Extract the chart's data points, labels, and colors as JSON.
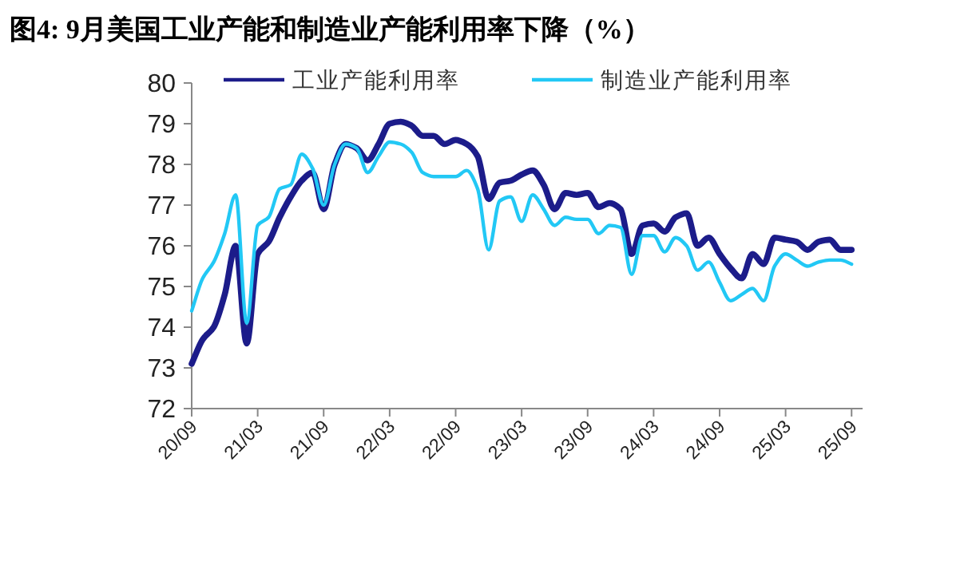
{
  "chart_data": {
    "type": "line",
    "title": "图4:  9月美国工业产能和制造业产能利用率下降（%）",
    "categories": [
      "20/09",
      null,
      null,
      null,
      null,
      null,
      "21/03",
      null,
      null,
      null,
      null,
      null,
      "21/09",
      null,
      null,
      null,
      null,
      null,
      "22/03",
      null,
      null,
      null,
      null,
      null,
      "22/09",
      null,
      null,
      null,
      null,
      null,
      "23/03",
      null,
      null,
      null,
      null,
      null,
      "23/09",
      null,
      null,
      null,
      null,
      null,
      "24/03",
      null,
      null,
      null,
      null,
      null,
      "24/09",
      null,
      null,
      null,
      null,
      null,
      "25/03",
      null,
      null,
      null,
      null,
      null,
      "25/09"
    ],
    "series": [
      {
        "name": "工业产能利用率",
        "color": "#1c1c8a",
        "values": [
          73.1,
          73.7,
          74.0,
          74.8,
          76.0,
          73.6,
          75.8,
          76.1,
          76.7,
          77.2,
          77.6,
          77.8,
          76.9,
          78.0,
          78.5,
          78.4,
          78.1,
          78.5,
          79.0,
          79.05,
          78.95,
          78.7,
          78.7,
          78.5,
          78.6,
          78.5,
          78.2,
          77.15,
          77.55,
          77.6,
          77.75,
          77.85,
          77.5,
          76.9,
          77.3,
          77.25,
          77.3,
          76.95,
          77.05,
          76.9,
          75.8,
          76.5,
          76.55,
          76.35,
          76.7,
          76.8,
          76.0,
          76.2,
          75.8,
          75.45,
          75.2,
          75.8,
          75.55,
          76.2,
          76.15,
          76.1,
          75.9,
          76.1,
          76.15,
          75.9,
          75.9
        ]
      },
      {
        "name": "制造业产能利用率",
        "color": "#22c8f5",
        "values": [
          74.4,
          75.2,
          75.6,
          76.3,
          77.25,
          74.1,
          76.5,
          76.7,
          77.4,
          77.5,
          78.25,
          77.9,
          77.0,
          78.0,
          78.5,
          78.4,
          77.8,
          78.2,
          78.55,
          78.5,
          78.3,
          77.8,
          77.7,
          77.7,
          77.7,
          77.85,
          77.4,
          75.9,
          77.1,
          77.2,
          76.6,
          77.25,
          76.9,
          76.5,
          76.7,
          76.65,
          76.65,
          76.3,
          76.5,
          76.45,
          75.3,
          76.25,
          76.25,
          75.85,
          76.2,
          76.0,
          75.4,
          75.6,
          75.1,
          74.65,
          74.8,
          74.95,
          74.65,
          75.5,
          75.8,
          75.65,
          75.5,
          75.6,
          75.65,
          75.65,
          75.55
        ]
      }
    ],
    "ylim": [
      72,
      80
    ],
    "yticks": [
      72,
      73,
      74,
      75,
      76,
      77,
      78,
      79,
      80
    ],
    "legend": "top",
    "line_style": "solid",
    "marker": "none"
  }
}
